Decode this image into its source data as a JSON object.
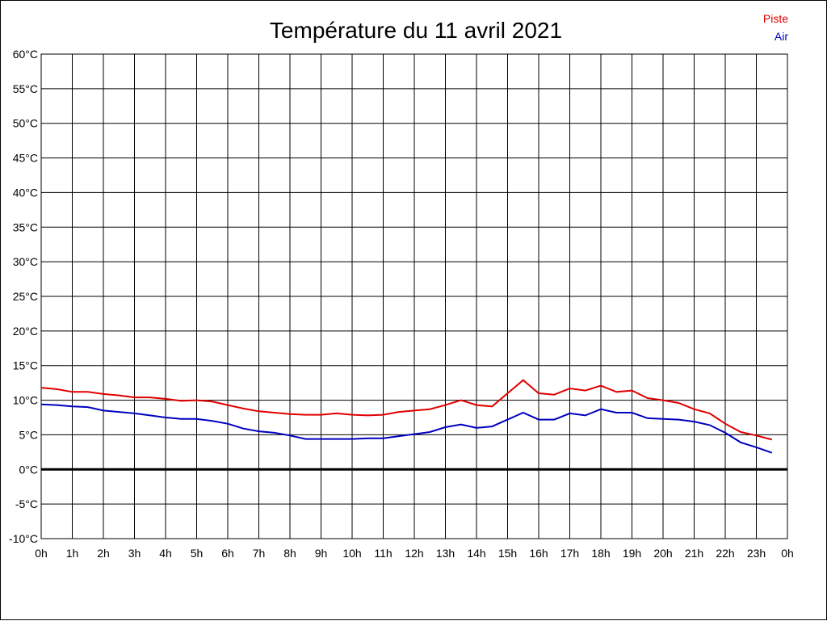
{
  "chart_data": {
    "type": "line",
    "title": "Température du 11 avril 2021",
    "xlabel": "",
    "ylabel": "",
    "x_range": [
      0,
      24
    ],
    "y_range": [
      -10,
      60
    ],
    "y_step": 5,
    "y_unit": "°C",
    "x_ticks": [
      "0h",
      "1h",
      "2h",
      "3h",
      "4h",
      "5h",
      "6h",
      "7h",
      "8h",
      "9h",
      "10h",
      "11h",
      "12h",
      "13h",
      "14h",
      "15h",
      "16h",
      "17h",
      "18h",
      "19h",
      "20h",
      "21h",
      "22h",
      "23h",
      "0h"
    ],
    "grid": true,
    "zero_line": true,
    "legend_position": "top-right",
    "series": [
      {
        "name": "Piste",
        "color": "#e00000",
        "x": [
          0,
          0.5,
          1,
          1.5,
          2,
          2.5,
          3,
          3.5,
          4,
          4.5,
          5,
          5.5,
          6,
          6.5,
          7,
          7.5,
          8,
          8.5,
          9,
          9.5,
          10,
          10.5,
          11,
          11.5,
          12,
          12.5,
          13,
          13.5,
          14,
          14.5,
          15,
          15.5,
          16,
          16.5,
          17,
          17.5,
          18,
          18.5,
          19,
          19.5,
          20,
          20.5,
          21,
          21.5,
          22,
          22.5,
          23,
          23.5
        ],
        "values": [
          11.8,
          11.6,
          11.2,
          11.2,
          10.9,
          10.7,
          10.4,
          10.4,
          10.2,
          9.9,
          10.0,
          9.8,
          9.3,
          8.8,
          8.4,
          8.2,
          8.0,
          7.9,
          7.9,
          8.1,
          7.9,
          7.8,
          7.9,
          8.3,
          8.5,
          8.7,
          9.3,
          10.0,
          9.3,
          9.1,
          11.0,
          12.9,
          11.0,
          10.8,
          11.7,
          11.4,
          12.1,
          11.2,
          11.4,
          10.3,
          10.0,
          9.6,
          8.7,
          8.1,
          6.6,
          5.4,
          4.9,
          4.3
        ]
      },
      {
        "name": "Air",
        "color": "#0000c0",
        "x": [
          0,
          0.5,
          1,
          1.5,
          2,
          2.5,
          3,
          3.5,
          4,
          4.5,
          5,
          5.5,
          6,
          6.5,
          7,
          7.5,
          8,
          8.5,
          9,
          9.5,
          10,
          10.5,
          11,
          11.5,
          12,
          12.5,
          13,
          13.5,
          14,
          14.5,
          15,
          15.5,
          16,
          16.5,
          17,
          17.5,
          18,
          18.5,
          19,
          19.5,
          20,
          20.5,
          21,
          21.5,
          22,
          22.5,
          23,
          23.5
        ],
        "values": [
          9.4,
          9.3,
          9.1,
          9.0,
          8.5,
          8.3,
          8.1,
          7.8,
          7.5,
          7.3,
          7.3,
          7.0,
          6.6,
          5.9,
          5.5,
          5.3,
          4.9,
          4.4,
          4.4,
          4.4,
          4.4,
          4.5,
          4.5,
          4.8,
          5.1,
          5.4,
          6.1,
          6.5,
          6.0,
          6.2,
          7.2,
          8.2,
          7.2,
          7.2,
          8.1,
          7.8,
          8.7,
          8.2,
          8.2,
          7.4,
          7.3,
          7.2,
          6.9,
          6.4,
          5.3,
          3.9,
          3.2,
          2.4
        ]
      }
    ]
  }
}
